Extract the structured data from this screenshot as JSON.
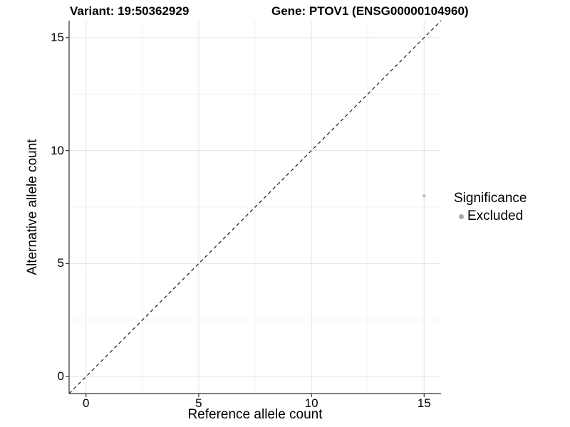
{
  "header": {
    "variant_title": "Variant: 19:50362929",
    "gene_title": "Gene: PTOV1 (ENSG00000104960)"
  },
  "chart_data": {
    "type": "scatter",
    "xlabel": "Reference allele count",
    "ylabel": "Alternative allele count",
    "xlim": [
      -0.75,
      15.75
    ],
    "ylim": [
      -0.75,
      15.75
    ],
    "x_ticks": [
      0,
      5,
      10,
      15
    ],
    "y_ticks": [
      0,
      5,
      10,
      15
    ],
    "x_minor_ticks": [
      2.5,
      7.5,
      12.5
    ],
    "y_minor_ticks": [
      2.5,
      7.5,
      12.5
    ],
    "grid": true,
    "identity_line": {
      "style": "dashed",
      "from": [
        -0.75,
        -0.75
      ],
      "to": [
        15.75,
        15.75
      ],
      "color": "#1a1a1a"
    },
    "series": [
      {
        "name": "Excluded",
        "color": "#bebebe",
        "points": [
          {
            "x": 15,
            "y": 8
          }
        ]
      }
    ],
    "legend": {
      "title": "Significance",
      "position": "right",
      "items": [
        {
          "label": "Excluded",
          "color": "#a8a8a8"
        }
      ]
    }
  },
  "style": {
    "grid_major_color": "#e3e3e3",
    "grid_minor_color": "#f0f0f0",
    "axis_line_color": "#333333",
    "point_radius": 2.3,
    "legend_key_radius": 3.5
  }
}
